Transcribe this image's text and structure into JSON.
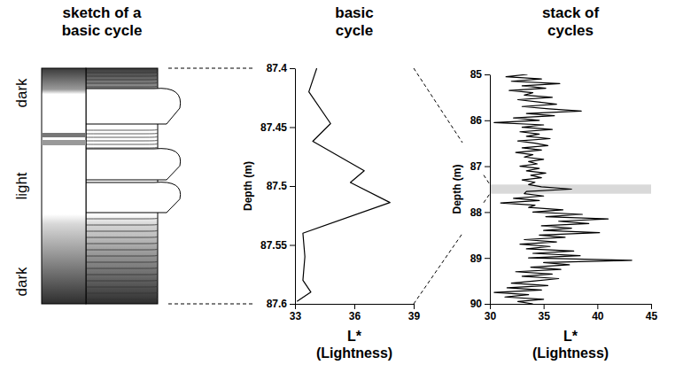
{
  "sketch": {
    "title": "sketch of a basic cycle",
    "labels": [
      "dark",
      "light",
      "dark"
    ]
  },
  "chart_data": [
    {
      "type": "line",
      "title": "basic cycle",
      "xlabel": "L* (Lightness)",
      "ylabel": "Depth (m)",
      "color": "#000000",
      "xlim": [
        33,
        39
      ],
      "xticks": [
        33,
        36,
        39
      ],
      "ylim": [
        87.6,
        87.4
      ],
      "yticks": [
        87.4,
        87.45,
        87.5,
        87.55,
        87.6
      ],
      "x": [
        34.1,
        33.7,
        34.8,
        33.9,
        36.5,
        35.8,
        37.8,
        33.4,
        33.5,
        33.4,
        33.8,
        33.1
      ],
      "y": [
        87.4,
        87.42,
        87.447,
        87.462,
        87.487,
        87.497,
        87.514,
        87.54,
        87.56,
        87.58,
        87.59,
        87.598
      ]
    },
    {
      "type": "line",
      "title": "stack of cycles",
      "xlabel": "L* (Lightness)",
      "ylabel": "Depth (m)",
      "color": "#000000",
      "xlim": [
        30,
        45
      ],
      "xticks": [
        30,
        35,
        40,
        45
      ],
      "ylim": [
        90,
        85
      ],
      "yticks": [
        85,
        86,
        87,
        88,
        89,
        90
      ],
      "band": [
        87.4,
        87.6
      ],
      "x": [
        33.5,
        31.5,
        34.8,
        32.0,
        36.5,
        33.0,
        35.2,
        31.8,
        34.0,
        33.2,
        35.8,
        32.6,
        34.5,
        36.2,
        33.0,
        35.5,
        38.5,
        33.4,
        36.0,
        32.2,
        34.6,
        30.4,
        35.0,
        33.0,
        35.8,
        32.8,
        34.6,
        33.4,
        35.6,
        32.6,
        34.2,
        35.4,
        33.0,
        34.8,
        32.4,
        34.0,
        33.2,
        35.0,
        33.6,
        34.4,
        32.8,
        34.6,
        33.4,
        35.2,
        33.8,
        34.8,
        33.0,
        34.2,
        33.6,
        34.8,
        37.6,
        33.4,
        33.2,
        35.0,
        32.2,
        34.6,
        31.0,
        34.2,
        33.6,
        36.8,
        34.0,
        38.6,
        35.2,
        41.0,
        36.4,
        39.2,
        34.8,
        37.6,
        35.0,
        40.2,
        34.6,
        37.0,
        33.2,
        36.2,
        32.8,
        35.6,
        33.4,
        37.8,
        34.0,
        38.4,
        33.6,
        43.2,
        35.0,
        37.4,
        33.8,
        36.6,
        32.4,
        35.8,
        33.0,
        36.4,
        34.2,
        32.0,
        35.4,
        31.6,
        34.8,
        30.4,
        33.6,
        31.4,
        35.0,
        32.6,
        34.0
      ],
      "y": [
        85.0,
        85.05,
        85.1,
        85.15,
        85.2,
        85.25,
        85.3,
        85.35,
        85.4,
        85.45,
        85.5,
        85.55,
        85.6,
        85.65,
        85.7,
        85.75,
        85.8,
        85.85,
        85.9,
        85.95,
        86.0,
        86.05,
        86.1,
        86.15,
        86.2,
        86.25,
        86.3,
        86.35,
        86.4,
        86.45,
        86.5,
        86.55,
        86.6,
        86.65,
        86.7,
        86.75,
        86.8,
        86.85,
        86.9,
        86.95,
        87.0,
        87.05,
        87.1,
        87.15,
        87.2,
        87.25,
        87.3,
        87.35,
        87.4,
        87.45,
        87.5,
        87.55,
        87.6,
        87.65,
        87.7,
        87.75,
        87.8,
        87.85,
        87.9,
        87.95,
        88.0,
        88.05,
        88.1,
        88.15,
        88.2,
        88.25,
        88.3,
        88.35,
        88.4,
        88.45,
        88.5,
        88.55,
        88.6,
        88.65,
        88.7,
        88.75,
        88.8,
        88.85,
        88.9,
        88.95,
        89.0,
        89.05,
        89.1,
        89.15,
        89.2,
        89.25,
        89.3,
        89.35,
        89.4,
        89.45,
        89.5,
        89.55,
        89.6,
        89.65,
        89.7,
        89.75,
        89.8,
        89.85,
        89.9,
        89.95,
        90.0
      ]
    }
  ]
}
